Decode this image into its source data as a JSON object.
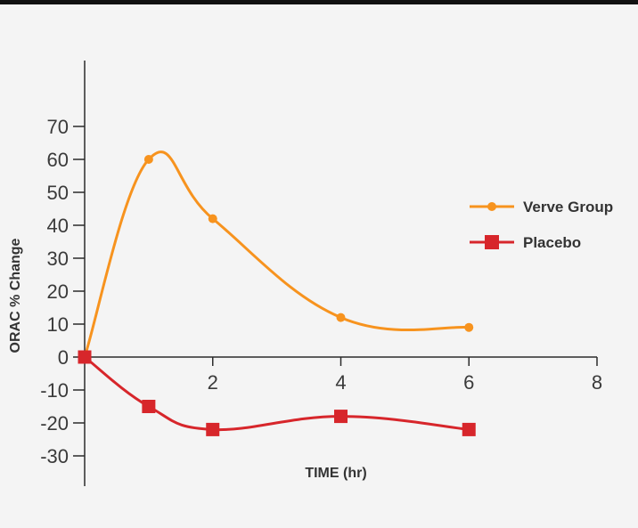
{
  "chart_data": {
    "type": "line",
    "title": "",
    "xlabel": "TIME (hr)",
    "ylabel": "ORAC % Change",
    "xlim": [
      0,
      8
    ],
    "ylim": [
      -30,
      70
    ],
    "x_ticks": [
      2,
      4,
      6,
      8
    ],
    "y_ticks": [
      70,
      60,
      50,
      40,
      30,
      20,
      10,
      0,
      -10,
      -20,
      -30
    ],
    "grid": false,
    "legend_position": "right",
    "series": [
      {
        "name": "Verve Group",
        "color": "#f7931e",
        "marker": "circle",
        "x": [
          0,
          1,
          2,
          4,
          6
        ],
        "values": [
          0,
          60,
          42,
          12,
          9
        ]
      },
      {
        "name": "Placebo",
        "color": "#d7262b",
        "marker": "square",
        "x": [
          0,
          1,
          2,
          4,
          6
        ],
        "values": [
          0,
          -15,
          -22,
          -18,
          -22
        ]
      }
    ]
  }
}
